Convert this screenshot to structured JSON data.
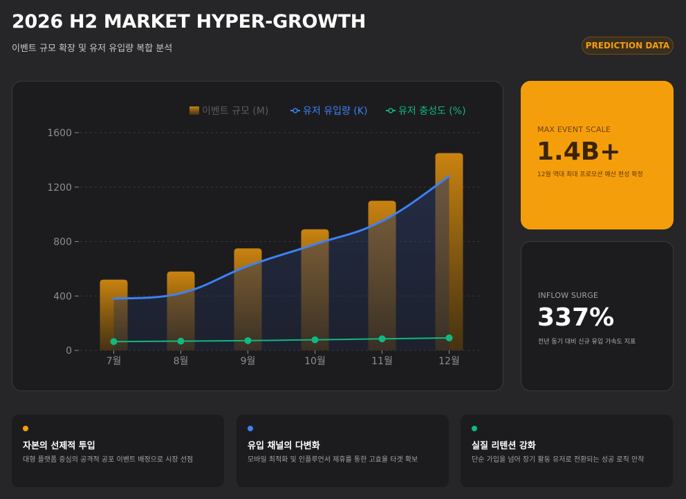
{
  "header": {
    "title": "2026 H2 MARKET HYPER-GROWTH",
    "subtitle": "이벤트 규모 확장 및 유저 유입량 복합 분석",
    "badge": "PREDICTION DATA"
  },
  "colors": {
    "bar": "#f59e0b",
    "inflow": "#3b82f6",
    "retention": "#10b981",
    "grid": "#3a3a3e",
    "tick": "#8e8e93"
  },
  "chart_data": {
    "type": "bar",
    "title": "",
    "xlabel": "",
    "ylabel": "",
    "categories": [
      "7월",
      "8월",
      "9월",
      "10월",
      "11월",
      "12월"
    ],
    "ylim": [
      0,
      1600
    ],
    "yticks": [
      "0",
      "400",
      "800",
      "1200",
      "1600"
    ],
    "ytick_values": [
      0,
      400,
      800,
      1200,
      1600
    ],
    "legend_position": "top-right",
    "grid": true,
    "series": [
      {
        "name": "이벤트 규모 (M)",
        "type": "bar",
        "values": [
          520,
          580,
          750,
          890,
          1100,
          1450
        ]
      },
      {
        "name": "유저 유입량 (K)",
        "type": "line",
        "values": [
          380,
          420,
          620,
          780,
          950,
          1280
        ]
      },
      {
        "name": "유저 충성도 (%)",
        "type": "line",
        "values": [
          65,
          68,
          72,
          78,
          85,
          92
        ]
      }
    ]
  },
  "stats": [
    {
      "label": "MAX EVENT SCALE",
      "value": "1.4B+",
      "desc": "12월 역대 최대 프로모션 예산 편성 확정"
    },
    {
      "label": "INFLOW SURGE",
      "value": "337%",
      "desc": "전년 동기 대비 신규 유입 가속도 지표"
    }
  ],
  "features": [
    {
      "title": "자본의 선제적 투입",
      "desc": "대형 플랫폼 중심의 공격적 공포 이벤트 배정으로 시장 선점",
      "color": "#f59e0b"
    },
    {
      "title": "유입 채널의 다변화",
      "desc": "모바일 최적화 및 인플루언서 제휴를 통한 고효율 타겟 확보",
      "color": "#3b82f6"
    },
    {
      "title": "실질 리텐션 강화",
      "desc": "단순 가입을 넘어 장기 활동 유저로 전환되는 성공 로직 안착",
      "color": "#10b981"
    }
  ]
}
